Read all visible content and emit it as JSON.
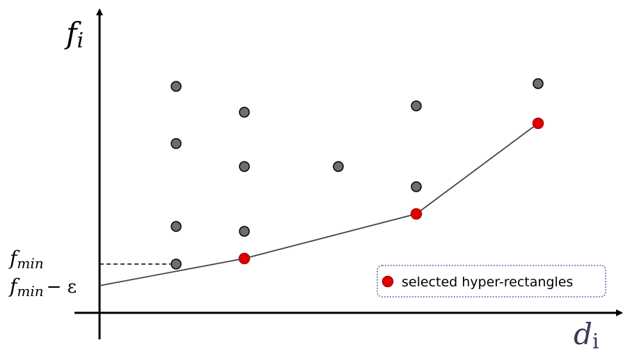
{
  "axes": {
    "y_label": {
      "main": "f",
      "sub": "i"
    },
    "x_label": {
      "main": "d",
      "sub": "i"
    }
  },
  "annotations": {
    "f_min": {
      "main": "f",
      "sub": "min"
    },
    "f_min_eps": {
      "main": "f",
      "sub": "min",
      "suffix": "− ε"
    }
  },
  "legend": {
    "label": "selected hyper-rectangles"
  }
}
